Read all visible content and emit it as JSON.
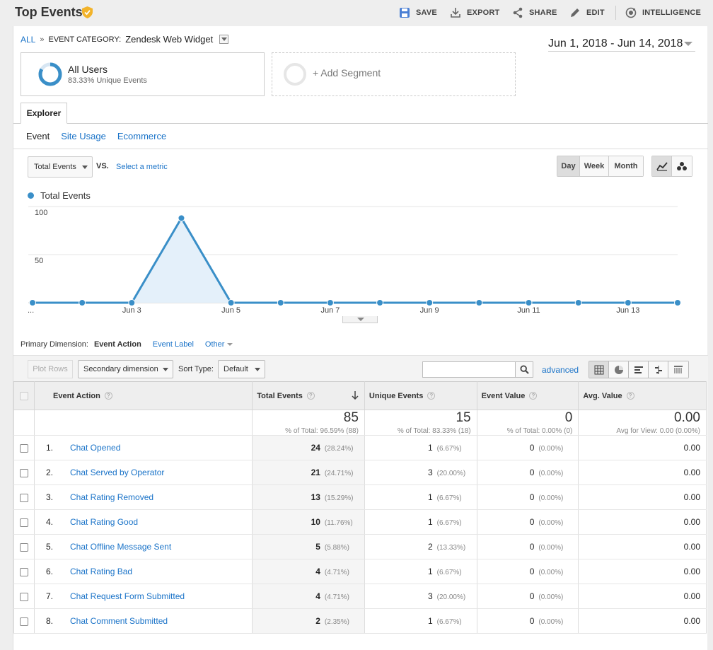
{
  "toolbar": {
    "title": "Top Events",
    "save": "SAVE",
    "export": "EXPORT",
    "share": "SHARE",
    "edit": "EDIT",
    "intelligence": "INTELLIGENCE"
  },
  "breadcrumb": {
    "all": "ALL",
    "separator": "»",
    "category_key": "EVENT CATEGORY:",
    "category_value": "Zendesk Web Widget"
  },
  "date_range": "Jun 1, 2018 - Jun 14, 2018",
  "segments": {
    "users_title": "All Users",
    "users_sub": "83.33% Unique Events",
    "users_fraction": 0.8333,
    "add_label": "+ Add Segment"
  },
  "explorer": {
    "tab": "Explorer",
    "subtabs": [
      "Event",
      "Site Usage",
      "Ecommerce"
    ]
  },
  "metric": {
    "selected": "Total Events",
    "vs": "VS.",
    "select_metric": "Select a metric"
  },
  "period": {
    "options": [
      "Day",
      "Week",
      "Month"
    ],
    "active": "Day"
  },
  "chart_data": {
    "type": "area",
    "series": [
      {
        "name": "Total Events",
        "values": [
          0,
          0,
          0,
          88,
          0,
          0,
          0,
          0,
          0,
          0,
          0,
          0,
          0,
          0
        ]
      }
    ],
    "x": [
      "Jun 1",
      "Jun 2",
      "Jun 3",
      "Jun 4",
      "Jun 5",
      "Jun 6",
      "Jun 7",
      "Jun 8",
      "Jun 9",
      "Jun 10",
      "Jun 11",
      "Jun 12",
      "Jun 13",
      "Jun 14"
    ],
    "x_tick_labels": [
      "...",
      "Jun 3",
      "Jun 5",
      "Jun 7",
      "Jun 9",
      "Jun 11",
      "Jun 13"
    ],
    "x_tick_indices": [
      0,
      2,
      4,
      6,
      8,
      10,
      12
    ],
    "y_ticks": [
      100,
      50
    ],
    "ylim": [
      0,
      100
    ],
    "color": "#3a8fc8",
    "fill": "#e4f0fa",
    "grid": true
  },
  "dimensions": {
    "label": "Primary Dimension:",
    "selected": "Event Action",
    "other1": "Event Label",
    "other2": "Other"
  },
  "table_tools": {
    "plot_rows": "Plot Rows",
    "secondary": "Secondary dimension",
    "sort_label": "Sort Type:",
    "sort_value": "Default",
    "search_placeholder": "",
    "advanced": "advanced"
  },
  "table": {
    "headers": [
      "Event Action",
      "Total Events",
      "Unique Events",
      "Event Value",
      "Avg. Value"
    ],
    "totals": {
      "total_events": "85",
      "total_events_sub": "% of Total: 96.59% (88)",
      "unique_events": "15",
      "unique_events_sub": "% of Total: 83.33% (18)",
      "event_value": "0",
      "event_value_sub": "% of Total: 0.00% (0)",
      "avg_value": "0.00",
      "avg_value_sub": "Avg for View: 0.00 (0.00%)"
    },
    "rows": [
      {
        "rank": "1.",
        "action": "Chat Opened",
        "total": "24",
        "total_pct": "(28.24%)",
        "unique": "1",
        "unique_pct": "(6.67%)",
        "value": "0",
        "value_pct": "(0.00%)",
        "avg": "0.00"
      },
      {
        "rank": "2.",
        "action": "Chat Served by Operator",
        "total": "21",
        "total_pct": "(24.71%)",
        "unique": "3",
        "unique_pct": "(20.00%)",
        "value": "0",
        "value_pct": "(0.00%)",
        "avg": "0.00"
      },
      {
        "rank": "3.",
        "action": "Chat Rating Removed",
        "total": "13",
        "total_pct": "(15.29%)",
        "unique": "1",
        "unique_pct": "(6.67%)",
        "value": "0",
        "value_pct": "(0.00%)",
        "avg": "0.00"
      },
      {
        "rank": "4.",
        "action": "Chat Rating Good",
        "total": "10",
        "total_pct": "(11.76%)",
        "unique": "1",
        "unique_pct": "(6.67%)",
        "value": "0",
        "value_pct": "(0.00%)",
        "avg": "0.00"
      },
      {
        "rank": "5.",
        "action": "Chat Offline Message Sent",
        "total": "5",
        "total_pct": "(5.88%)",
        "unique": "2",
        "unique_pct": "(13.33%)",
        "value": "0",
        "value_pct": "(0.00%)",
        "avg": "0.00"
      },
      {
        "rank": "6.",
        "action": "Chat Rating Bad",
        "total": "4",
        "total_pct": "(4.71%)",
        "unique": "1",
        "unique_pct": "(6.67%)",
        "value": "0",
        "value_pct": "(0.00%)",
        "avg": "0.00"
      },
      {
        "rank": "7.",
        "action": "Chat Request Form Submitted",
        "total": "4",
        "total_pct": "(4.71%)",
        "unique": "3",
        "unique_pct": "(20.00%)",
        "value": "0",
        "value_pct": "(0.00%)",
        "avg": "0.00"
      },
      {
        "rank": "8.",
        "action": "Chat Comment Submitted",
        "total": "2",
        "total_pct": "(2.35%)",
        "unique": "1",
        "unique_pct": "(6.67%)",
        "value": "0",
        "value_pct": "(0.00%)",
        "avg": "0.00"
      }
    ]
  },
  "colors": {
    "accent": "#1a73c8",
    "line": "#3a8fc8",
    "badge": "#f2b32a"
  }
}
